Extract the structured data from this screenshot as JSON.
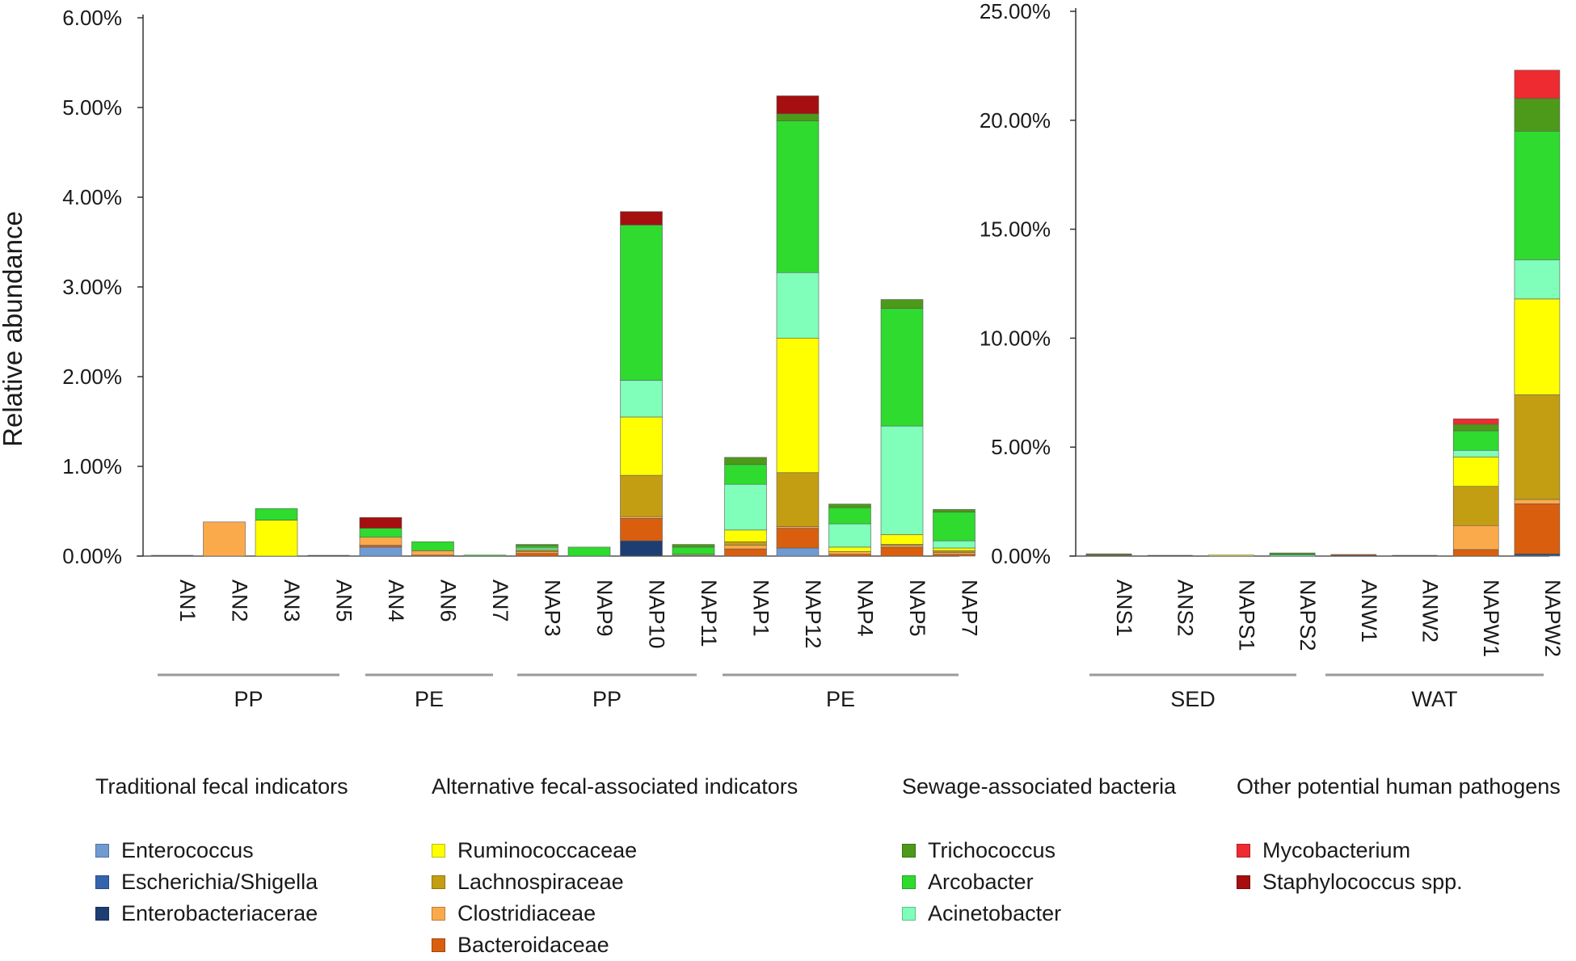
{
  "colors": {
    "Enterococcus": "#6F9BD1",
    "Escherichia/Shigella": "#3464AC",
    "Enterobacteriacerae": "#1E3D73",
    "Ruminococcaceae": "#FFFF00",
    "Lachnospiraceae": "#C49E12",
    "Clostridiaceae": "#FBAA4B",
    "Bacteroidaceae": "#D95F0E",
    "Trichococcus": "#4D9A1A",
    "Arcobacter": "#2EDB2E",
    "Acinetobacter": "#7FFFB9",
    "Mycobacterium": "#EE2B30",
    "Staphylococcus spp.": "#A50F0F"
  },
  "chart_data": [
    {
      "type": "bar",
      "stacked": true,
      "ylabel": "Relative abundance",
      "ylim": [
        0,
        6.0
      ],
      "yticks": [
        "0.00%",
        "1.00%",
        "2.00%",
        "3.00%",
        "4.00%",
        "5.00%",
        "6.00%"
      ],
      "categories": [
        "AN1",
        "AN2",
        "AN3",
        "AN5",
        "AN4",
        "AN6",
        "AN7",
        "NAP3",
        "NAP9",
        "NAP10",
        "NAP11",
        "NAP1",
        "NAP12",
        "NAP4",
        "NAP5",
        "NAP7"
      ],
      "groups": [
        {
          "label": "PP",
          "members": [
            "AN1",
            "AN2",
            "AN3",
            "AN5"
          ]
        },
        {
          "label": "PE",
          "members": [
            "AN4",
            "AN6",
            "AN7"
          ]
        },
        {
          "label": "PP",
          "members": [
            "NAP3",
            "NAP9",
            "NAP10",
            "NAP11"
          ]
        },
        {
          "label": "PE",
          "members": [
            "NAP1",
            "NAP12",
            "NAP4",
            "NAP5",
            "NAP7"
          ]
        }
      ],
      "series": [
        {
          "name": "Enterococcus",
          "values": [
            0,
            0,
            0,
            0,
            0.1,
            0,
            0,
            0,
            0,
            0,
            0,
            0,
            0.09,
            0,
            0,
            0
          ]
        },
        {
          "name": "Escherichia/Shigella",
          "values": [
            0,
            0,
            0,
            0,
            0,
            0,
            0,
            0,
            0,
            0,
            0,
            0,
            0,
            0,
            0,
            0
          ]
        },
        {
          "name": "Enterobacteriacerae",
          "values": [
            0,
            0,
            0,
            0,
            0,
            0,
            0,
            0,
            0,
            0.17,
            0,
            0,
            0,
            0,
            0,
            0
          ]
        },
        {
          "name": "Bacteroidaceae",
          "values": [
            0,
            0,
            0,
            0,
            0.02,
            0.01,
            0,
            0.03,
            0,
            0.25,
            0.01,
            0.08,
            0.22,
            0.02,
            0.1,
            0.02
          ]
        },
        {
          "name": "Clostridiaceae",
          "values": [
            0,
            0.38,
            0,
            0,
            0.09,
            0.05,
            0,
            0.02,
            0,
            0.02,
            0,
            0.04,
            0.02,
            0.03,
            0.02,
            0.02
          ]
        },
        {
          "name": "Lachnospiraceae",
          "values": [
            0,
            0,
            0,
            0,
            0,
            0,
            0,
            0.02,
            0,
            0.46,
            0,
            0.04,
            0.6,
            0,
            0.01,
            0.02
          ]
        },
        {
          "name": "Ruminococcaceae",
          "values": [
            0,
            0,
            0.4,
            0,
            0,
            0,
            0,
            0,
            0,
            0.65,
            0,
            0.13,
            1.5,
            0.05,
            0.11,
            0.03
          ]
        },
        {
          "name": "Acinetobacter",
          "values": [
            0,
            0,
            0,
            0,
            0,
            0,
            0,
            0.02,
            0,
            0.41,
            0.01,
            0.51,
            0.73,
            0.26,
            1.21,
            0.08
          ]
        },
        {
          "name": "Arcobacter",
          "values": [
            0,
            0,
            0.13,
            0,
            0.1,
            0.1,
            0.01,
            0.02,
            0.1,
            1.73,
            0.08,
            0.22,
            1.69,
            0.18,
            1.31,
            0.32
          ]
        },
        {
          "name": "Trichococcus",
          "values": [
            0,
            0,
            0,
            0,
            0,
            0,
            0,
            0.02,
            0,
            0,
            0.03,
            0.08,
            0.08,
            0.04,
            0.1,
            0.03
          ]
        },
        {
          "name": "Mycobacterium",
          "values": [
            0,
            0,
            0,
            0,
            0,
            0,
            0,
            0,
            0,
            0,
            0,
            0,
            0,
            0,
            0,
            0
          ]
        },
        {
          "name": "Staphylococcus spp.",
          "values": [
            0,
            0,
            0,
            0,
            0.12,
            0,
            0,
            0,
            0,
            0.15,
            0,
            0,
            0.2,
            0,
            0,
            0
          ]
        }
      ]
    },
    {
      "type": "bar",
      "stacked": true,
      "ylim": [
        0,
        25.0
      ],
      "yticks": [
        "0.00%",
        "5.00%",
        "10.00%",
        "15.00%",
        "20.00%",
        "25.00%"
      ],
      "categories": [
        "ANS1",
        "ANS2",
        "NAPS1",
        "NAPS2",
        "ANW1",
        "ANW2",
        "NAPW1",
        "NAPW2"
      ],
      "groups": [
        {
          "label": "SED",
          "members": [
            "ANS1",
            "ANS2",
            "NAPS1",
            "NAPS2"
          ]
        },
        {
          "label": "WAT",
          "members": [
            "ANW1",
            "ANW2",
            "NAPW1",
            "NAPW2"
          ]
        }
      ],
      "series": [
        {
          "name": "Enterococcus",
          "values": [
            0,
            0,
            0,
            0,
            0,
            0,
            0,
            0
          ]
        },
        {
          "name": "Escherichia/Shigella",
          "values": [
            0,
            0,
            0,
            0,
            0,
            0,
            0,
            0.05
          ]
        },
        {
          "name": "Enterobacteriacerae",
          "values": [
            0,
            0,
            0,
            0,
            0.03,
            0,
            0,
            0.05
          ]
        },
        {
          "name": "Bacteroidaceae",
          "values": [
            0.02,
            0,
            0,
            0,
            0.02,
            0,
            0.3,
            2.3
          ]
        },
        {
          "name": "Clostridiaceae",
          "values": [
            0.02,
            0,
            0,
            0,
            0,
            0,
            1.1,
            0.2
          ]
        },
        {
          "name": "Lachnospiraceae",
          "values": [
            0.02,
            0,
            0,
            0,
            0,
            0,
            1.8,
            4.8
          ]
        },
        {
          "name": "Ruminococcaceae",
          "values": [
            0,
            0,
            0.02,
            0,
            0,
            0,
            1.35,
            4.4
          ]
        },
        {
          "name": "Acinetobacter",
          "values": [
            0,
            0,
            0,
            0.05,
            0,
            0,
            0.3,
            1.8
          ]
        },
        {
          "name": "Arcobacter",
          "values": [
            0,
            0,
            0,
            0.05,
            0,
            0,
            0.9,
            5.9
          ]
        },
        {
          "name": "Trichococcus",
          "values": [
            0.02,
            0,
            0,
            0.02,
            0,
            0,
            0.3,
            1.5
          ]
        },
        {
          "name": "Mycobacterium",
          "values": [
            0,
            0,
            0,
            0,
            0,
            0,
            0.25,
            1.3
          ]
        },
        {
          "name": "Staphylococcus spp.",
          "values": [
            0,
            0,
            0,
            0,
            0,
            0,
            0,
            0
          ]
        }
      ]
    }
  ],
  "legend": [
    {
      "title": "Traditional fecal indicators",
      "items": [
        "Enterococcus",
        "Escherichia/Shigella",
        "Enterobacteriacerae"
      ]
    },
    {
      "title": "Alternative fecal-associated indicators",
      "items": [
        "Ruminococcaceae",
        "Lachnospiraceae",
        "Clostridiaceae",
        "Bacteroidaceae"
      ]
    },
    {
      "title": "Sewage-associated bacteria",
      "items": [
        "Trichococcus",
        "Arcobacter",
        "Acinetobacter"
      ]
    },
    {
      "title": "Other potential human pathogens",
      "items": [
        "Mycobacterium",
        "Staphylococcus spp."
      ]
    }
  ]
}
